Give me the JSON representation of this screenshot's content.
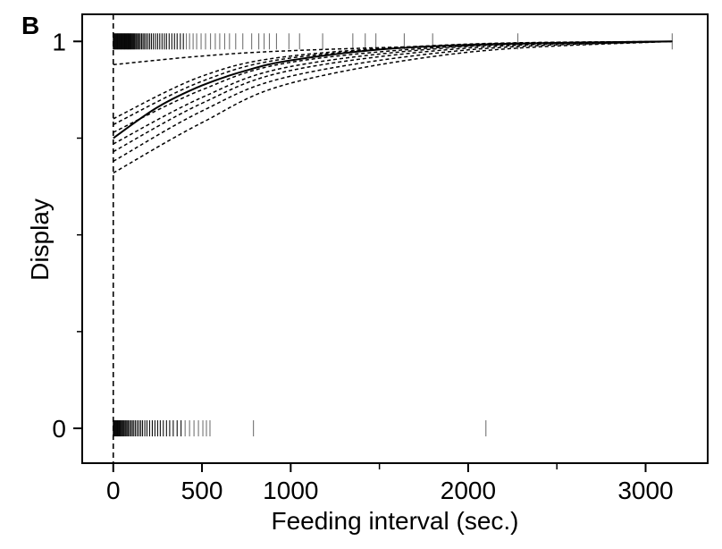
{
  "panel_label": "B",
  "chart_data": {
    "type": "line",
    "xlabel": "Feeding interval (sec.)",
    "ylabel": "Display",
    "xlim": [
      -175,
      3350
    ],
    "ylim": [
      -0.09,
      1.07
    ],
    "x_ticks": [
      0,
      500,
      1000,
      2000,
      3000
    ],
    "x_minor_ticks": [
      1500,
      2500
    ],
    "y_ticks": [
      0,
      1
    ],
    "y_minor_ticks": [
      0.25,
      0.5,
      0.75
    ],
    "vline_x": 0,
    "fit": {
      "name": "",
      "x": [
        0,
        250,
        500,
        750,
        1000,
        1500,
        2000,
        2500,
        3150
      ],
      "y": [
        0.75,
        0.83,
        0.886,
        0.925,
        0.951,
        0.979,
        0.991,
        0.996,
        1.0
      ],
      "style": "solid"
    },
    "simulated_curves": [
      {
        "x": [
          0,
          500,
          1000,
          2000,
          3150
        ],
        "y": [
          0.94,
          0.962,
          0.976,
          0.99,
          1.0
        ]
      },
      {
        "x": [
          0,
          500,
          1000,
          2000,
          3150
        ],
        "y": [
          0.8,
          0.91,
          0.962,
          0.993,
          1.0
        ]
      },
      {
        "x": [
          0,
          500,
          1000,
          2000,
          3150
        ],
        "y": [
          0.785,
          0.897,
          0.957,
          0.992,
          1.0
        ]
      },
      {
        "x": [
          0,
          500,
          1000,
          2000,
          3150
        ],
        "y": [
          0.765,
          0.875,
          0.946,
          0.989,
          1.0
        ]
      },
      {
        "x": [
          0,
          500,
          1000,
          2000,
          3150
        ],
        "y": [
          0.735,
          0.855,
          0.935,
          0.987,
          1.0
        ]
      },
      {
        "x": [
          0,
          500,
          1000,
          2000,
          3150
        ],
        "y": [
          0.715,
          0.84,
          0.925,
          0.983,
          1.0
        ]
      },
      {
        "x": [
          0,
          500,
          1000,
          2000,
          3150
        ],
        "y": [
          0.69,
          0.82,
          0.91,
          0.978,
          1.0
        ]
      },
      {
        "x": [
          0,
          500,
          1000,
          2000,
          3150
        ],
        "y": [
          0.66,
          0.79,
          0.892,
          0.972,
          1.0
        ]
      }
    ],
    "rug_display_1": [
      0,
      4,
      8,
      12,
      16,
      20,
      24,
      28,
      32,
      36,
      40,
      44,
      48,
      52,
      56,
      60,
      64,
      68,
      72,
      76,
      80,
      84,
      88,
      92,
      96,
      100,
      105,
      110,
      115,
      120,
      126,
      132,
      138,
      145,
      152,
      160,
      168,
      176,
      185,
      195,
      205,
      215,
      226,
      238,
      250,
      262,
      275,
      288,
      300,
      315,
      330,
      345,
      360,
      378,
      395,
      412,
      430,
      450,
      470,
      495,
      520,
      548,
      575,
      600,
      628,
      655,
      690,
      730,
      780,
      820,
      850,
      880,
      920,
      990,
      1050,
      1180,
      1350,
      1420,
      1480,
      1640,
      1800,
      2280,
      3150
    ],
    "rug_display_0": [
      0,
      4,
      8,
      12,
      16,
      20,
      24,
      28,
      32,
      36,
      40,
      45,
      50,
      55,
      60,
      66,
      72,
      78,
      85,
      92,
      100,
      108,
      116,
      125,
      135,
      145,
      155,
      165,
      178,
      190,
      205,
      220,
      235,
      250,
      265,
      282,
      300,
      318,
      338,
      360,
      382,
      405,
      430,
      455,
      480,
      505,
      525,
      545,
      790,
      2100
    ]
  }
}
